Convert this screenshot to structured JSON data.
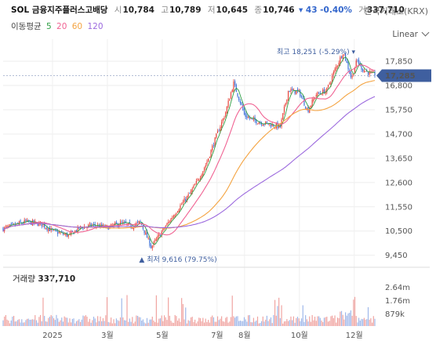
{
  "header": {
    "name": "SOL 금융지주플러스고배당",
    "open_label": "시",
    "open": "10,784",
    "high_label": "고",
    "high": "10,789",
    "low_label": "저",
    "low": "10,645",
    "close_label": "종",
    "close": "10,746",
    "change": "▾ 43 -0.40%",
    "volume_label": "거",
    "volume": "337,710"
  },
  "exchange": "한국거래소(KRX)",
  "scale_mode": "Linear",
  "moving_average": {
    "label": "이동평균",
    "periods": [
      "5",
      "20",
      "60",
      "120"
    ]
  },
  "colors": {
    "up": "#e8433a",
    "down": "#3a6fd8",
    "ma5": "#2f9e44",
    "ma20": "#f06292",
    "ma60": "#f4a340",
    "ma120": "#9c6ade",
    "last_price_badge": "#3f5f9f"
  },
  "volume_panel": {
    "title": "거래량",
    "value": "337,710",
    "ticks": [
      "2.64m",
      "1.76m",
      "879k"
    ]
  },
  "annotations": {
    "high": "최고 18,251 (-5.29%) ▾",
    "low": "▲ 최저 9,616 (79.75%)",
    "last_price": "17,285"
  },
  "chart_data": {
    "type": "candlestick",
    "title": "SOL 금융지주플러스고배당",
    "y_ticks": [
      9450,
      10500,
      11550,
      12600,
      13650,
      14700,
      15750,
      16800,
      17850
    ],
    "y_tick_labels": [
      "9,450",
      "10,500",
      "11,550",
      "12,600",
      "13,650",
      "14,700",
      "15,750",
      "16,800",
      "17,850"
    ],
    "ylim": [
      9100,
      18600
    ],
    "x_labels": [
      "2025",
      "3월",
      "5월",
      "7월",
      "8월",
      "10월",
      "12월"
    ],
    "x_label_months": [
      0,
      2,
      4,
      6,
      7,
      9,
      11
    ],
    "months_span": [
      -1.8,
      11.75
    ],
    "series": [
      {
        "name": "price_path",
        "x": [
          -1.8,
          -1.0,
          -0.4,
          0.0,
          0.6,
          1.0,
          1.5,
          2.0,
          2.5,
          2.9,
          3.2,
          3.6,
          4.0,
          4.3,
          4.6,
          5.0,
          5.3,
          5.6,
          6.0,
          6.3,
          6.6,
          6.9,
          7.0,
          7.3,
          7.6,
          8.0,
          8.3,
          8.6,
          9.0,
          9.3,
          9.6,
          10.0,
          10.3,
          10.6,
          10.9,
          11.1,
          11.3,
          11.6,
          11.75
        ],
        "y": [
          10600,
          10900,
          10800,
          10500,
          10300,
          10650,
          10750,
          10650,
          10850,
          10700,
          10900,
          9800,
          10500,
          11000,
          11500,
          12100,
          12700,
          13400,
          14700,
          15600,
          16900,
          15900,
          15500,
          15300,
          15200,
          15100,
          15000,
          16600,
          16500,
          15700,
          16400,
          16600,
          17500,
          18251,
          17100,
          17900,
          17500,
          17300,
          17285
        ]
      }
    ],
    "volume": {
      "min": 0,
      "max": 2900000
    }
  }
}
